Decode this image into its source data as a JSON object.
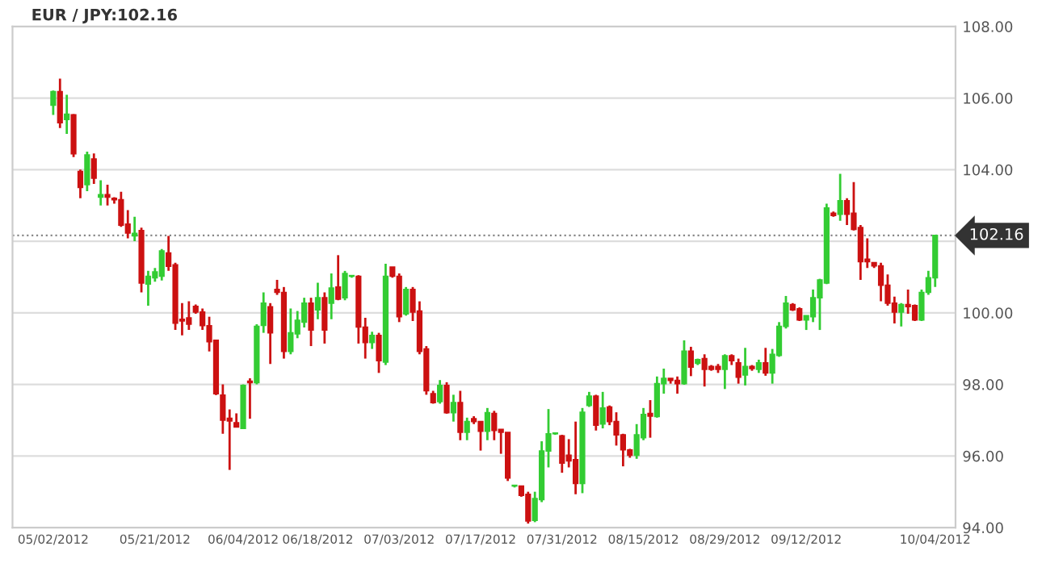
{
  "chart_data": {
    "type": "candlestick",
    "title": "EUR / JPY:102.16",
    "categories": [
      "05/02/2012",
      null,
      null,
      null,
      null,
      null,
      null,
      null,
      null,
      null,
      null,
      null,
      null,
      null,
      null,
      "05/21/2012",
      null,
      null,
      null,
      null,
      null,
      null,
      null,
      null,
      null,
      null,
      null,
      null,
      "06/04/2012",
      null,
      null,
      null,
      null,
      null,
      null,
      null,
      null,
      null,
      null,
      "06/18/2012",
      null,
      null,
      null,
      null,
      null,
      null,
      null,
      null,
      null,
      null,
      null,
      "07/03/2012",
      null,
      null,
      null,
      null,
      null,
      null,
      null,
      null,
      null,
      null,
      null,
      "07/17/2012",
      null,
      null,
      null,
      null,
      null,
      null,
      null,
      null,
      null,
      null,
      null,
      "07/31/2012",
      null,
      null,
      null,
      null,
      null,
      null,
      null,
      null,
      null,
      null,
      null,
      "08/15/2012",
      null,
      null,
      null,
      null,
      null,
      null,
      null,
      null,
      null,
      null,
      null,
      "08/29/2012",
      null,
      null,
      null,
      null,
      null,
      null,
      null,
      null,
      null,
      null,
      null,
      "09/12/2012",
      null,
      null,
      null,
      null,
      null,
      null,
      null,
      null,
      null,
      null,
      null,
      null,
      null,
      null,
      null,
      null,
      null,
      null,
      "10/04/2012"
    ],
    "ohlc": [
      [
        105.8,
        106.21,
        105.53,
        106.18
      ],
      [
        106.18,
        106.54,
        105.16,
        105.31
      ],
      [
        105.4,
        106.09,
        105.0,
        105.55
      ],
      [
        105.53,
        105.55,
        104.35,
        104.44
      ],
      [
        103.95,
        104.0,
        103.2,
        103.5
      ],
      [
        103.58,
        104.5,
        103.4,
        104.41
      ],
      [
        104.3,
        104.45,
        103.6,
        103.76
      ],
      [
        103.23,
        103.7,
        103.0,
        103.3
      ],
      [
        103.3,
        103.58,
        103.0,
        103.23
      ],
      [
        103.2,
        103.23,
        103.05,
        103.16
      ],
      [
        103.16,
        103.38,
        102.4,
        102.45
      ],
      [
        102.48,
        102.87,
        102.08,
        102.23
      ],
      [
        102.15,
        102.68,
        102.0,
        102.22
      ],
      [
        102.3,
        102.38,
        100.57,
        100.83
      ],
      [
        100.8,
        101.17,
        100.2,
        101.02
      ],
      [
        100.98,
        101.25,
        100.87,
        101.14
      ],
      [
        101.02,
        101.78,
        100.9,
        101.73
      ],
      [
        101.67,
        102.15,
        101.17,
        101.3
      ],
      [
        101.34,
        101.4,
        99.52,
        99.71
      ],
      [
        99.82,
        100.27,
        99.37,
        99.77
      ],
      [
        99.86,
        100.32,
        99.52,
        99.68
      ],
      [
        100.18,
        100.23,
        99.97,
        100.02
      ],
      [
        100.02,
        100.12,
        99.52,
        99.64
      ],
      [
        99.64,
        99.89,
        98.92,
        99.19
      ],
      [
        99.23,
        99.25,
        97.7,
        97.74
      ],
      [
        97.7,
        98.0,
        96.62,
        97.0
      ],
      [
        97.05,
        97.3,
        95.61,
        96.98
      ],
      [
        96.93,
        97.19,
        96.81,
        96.81
      ],
      [
        96.77,
        98.0,
        96.77,
        97.97
      ],
      [
        98.09,
        98.17,
        97.04,
        98.05
      ],
      [
        98.05,
        99.68,
        98.0,
        99.62
      ],
      [
        99.65,
        100.57,
        99.44,
        100.27
      ],
      [
        100.17,
        100.27,
        98.57,
        99.44
      ],
      [
        100.65,
        100.92,
        100.5,
        100.57
      ],
      [
        100.57,
        100.72,
        98.72,
        98.92
      ],
      [
        98.92,
        100.12,
        98.84,
        99.44
      ],
      [
        99.41,
        100.05,
        99.29,
        99.79
      ],
      [
        99.74,
        100.42,
        99.59,
        100.27
      ],
      [
        100.27,
        100.42,
        99.07,
        99.52
      ],
      [
        100.08,
        100.84,
        99.82,
        100.42
      ],
      [
        100.42,
        100.57,
        99.14,
        99.52
      ],
      [
        100.27,
        101.1,
        99.82,
        100.69
      ],
      [
        100.72,
        101.61,
        100.35,
        100.38
      ],
      [
        100.42,
        101.17,
        100.35,
        101.1
      ],
      [
        101.02,
        101.05,
        100.98,
        101.02
      ],
      [
        101.02,
        101.05,
        99.14,
        99.6
      ],
      [
        99.6,
        99.86,
        98.72,
        99.17
      ],
      [
        99.17,
        99.47,
        98.99,
        99.37
      ],
      [
        99.37,
        99.44,
        98.32,
        98.66
      ],
      [
        98.62,
        101.37,
        98.54,
        101.02
      ],
      [
        101.28,
        101.28,
        100.98,
        101.02
      ],
      [
        101.02,
        101.1,
        99.74,
        99.89
      ],
      [
        99.97,
        100.72,
        99.92,
        100.65
      ],
      [
        100.65,
        100.72,
        99.77,
        100.02
      ],
      [
        100.05,
        100.32,
        98.84,
        98.92
      ],
      [
        98.99,
        99.07,
        97.71,
        97.82
      ],
      [
        97.74,
        97.82,
        97.46,
        97.49
      ],
      [
        97.52,
        98.12,
        97.46,
        97.97
      ],
      [
        97.97,
        98.06,
        97.18,
        97.21
      ],
      [
        97.21,
        97.71,
        96.96,
        97.49
      ],
      [
        97.49,
        97.82,
        96.44,
        96.66
      ],
      [
        96.66,
        97.07,
        96.44,
        96.96
      ],
      [
        97.04,
        97.11,
        96.89,
        96.96
      ],
      [
        96.96,
        96.96,
        96.15,
        96.69
      ],
      [
        96.69,
        97.34,
        96.44,
        97.21
      ],
      [
        97.19,
        97.26,
        96.44,
        96.71
      ],
      [
        96.74,
        96.74,
        96.06,
        96.66
      ],
      [
        96.66,
        96.66,
        95.3,
        95.38
      ],
      [
        95.16,
        95.19,
        95.12,
        95.16
      ],
      [
        95.16,
        95.16,
        94.86,
        94.9
      ],
      [
        94.93,
        95.0,
        94.11,
        94.18
      ],
      [
        94.2,
        95.0,
        94.15,
        94.81
      ],
      [
        94.78,
        96.41,
        94.71,
        96.14
      ],
      [
        96.14,
        97.31,
        95.68,
        96.62
      ],
      [
        96.62,
        96.66,
        96.59,
        96.62
      ],
      [
        96.56,
        96.59,
        95.53,
        95.8
      ],
      [
        96.02,
        96.47,
        95.68,
        95.86
      ],
      [
        95.9,
        96.96,
        94.93,
        95.23
      ],
      [
        95.23,
        97.34,
        94.96,
        97.22
      ],
      [
        97.41,
        97.79,
        97.37,
        97.67
      ],
      [
        97.67,
        97.71,
        96.71,
        96.86
      ],
      [
        96.89,
        97.79,
        96.77,
        97.34
      ],
      [
        97.37,
        97.41,
        96.86,
        96.96
      ],
      [
        96.96,
        97.22,
        96.29,
        96.59
      ],
      [
        96.59,
        96.62,
        95.71,
        96.17
      ],
      [
        96.17,
        96.2,
        95.95,
        96.02
      ],
      [
        96.02,
        96.89,
        95.92,
        96.59
      ],
      [
        96.51,
        97.34,
        96.44,
        97.16
      ],
      [
        97.19,
        97.56,
        96.51,
        97.11
      ],
      [
        97.1,
        98.22,
        97.07,
        98.02
      ],
      [
        98.02,
        98.44,
        97.74,
        98.17
      ],
      [
        98.17,
        98.17,
        98.02,
        98.11
      ],
      [
        98.11,
        98.22,
        97.74,
        98.02
      ],
      [
        98.02,
        99.23,
        97.99,
        98.93
      ],
      [
        98.93,
        99.05,
        98.23,
        98.48
      ],
      [
        98.59,
        98.72,
        98.54,
        98.69
      ],
      [
        98.72,
        98.84,
        97.94,
        98.42
      ],
      [
        98.5,
        98.54,
        98.38,
        98.42
      ],
      [
        98.5,
        98.57,
        98.32,
        98.42
      ],
      [
        98.42,
        98.84,
        97.87,
        98.8
      ],
      [
        98.8,
        98.84,
        98.54,
        98.66
      ],
      [
        98.6,
        98.72,
        98.02,
        98.2
      ],
      [
        98.26,
        99.02,
        97.97,
        98.5
      ],
      [
        98.5,
        98.54,
        98.38,
        98.44
      ],
      [
        98.42,
        98.69,
        98.32,
        98.6
      ],
      [
        98.6,
        99.02,
        98.24,
        98.32
      ],
      [
        98.32,
        98.99,
        98.02,
        98.84
      ],
      [
        98.81,
        99.74,
        98.77,
        99.62
      ],
      [
        99.62,
        100.47,
        99.56,
        100.27
      ],
      [
        100.23,
        100.27,
        100.05,
        100.08
      ],
      [
        100.11,
        100.15,
        99.77,
        99.8
      ],
      [
        99.8,
        99.92,
        99.52,
        99.92
      ],
      [
        99.89,
        100.65,
        99.74,
        100.42
      ],
      [
        100.42,
        100.95,
        99.52,
        100.92
      ],
      [
        100.83,
        103.05,
        100.8,
        102.93
      ],
      [
        102.78,
        102.83,
        102.68,
        102.72
      ],
      [
        102.75,
        103.88,
        102.57,
        103.13
      ],
      [
        103.13,
        103.2,
        102.45,
        102.75
      ],
      [
        102.78,
        103.65,
        102.3,
        102.33
      ],
      [
        102.38,
        102.45,
        100.92,
        101.43
      ],
      [
        101.5,
        102.08,
        101.25,
        101.43
      ],
      [
        101.4,
        101.4,
        101.25,
        101.31
      ],
      [
        101.31,
        101.4,
        100.32,
        100.77
      ],
      [
        100.77,
        101.07,
        100.2,
        100.27
      ],
      [
        100.27,
        100.45,
        99.7,
        100.02
      ],
      [
        100.02,
        100.27,
        99.62,
        100.23
      ],
      [
        100.23,
        100.65,
        99.97,
        100.17
      ],
      [
        100.2,
        100.23,
        99.77,
        99.8
      ],
      [
        99.8,
        100.65,
        99.77,
        100.57
      ],
      [
        100.57,
        101.17,
        100.5,
        100.98
      ],
      [
        100.98,
        102.16,
        100.72,
        102.16
      ]
    ],
    "colors": [
      "#33cc33",
      "#cc1111",
      "#33cc33",
      "#cc1111",
      "#cc1111",
      "#33cc33",
      "#cc1111",
      "#33cc33",
      "#cc1111",
      "#cc1111",
      "#cc1111",
      "#cc1111",
      "#33cc33",
      "#cc1111",
      "#33cc33",
      "#33cc33",
      "#33cc33",
      "#cc1111",
      "#cc1111",
      "#cc1111",
      "#cc1111",
      "#cc1111",
      "#cc1111",
      "#cc1111",
      "#cc1111",
      "#cc1111",
      "#cc1111",
      "#cc1111",
      "#33cc33",
      "#cc1111",
      "#33cc33",
      "#33cc33",
      "#cc1111",
      "#cc1111",
      "#cc1111",
      "#33cc33",
      "#33cc33",
      "#33cc33",
      "#cc1111",
      "#33cc33",
      "#cc1111",
      "#33cc33",
      "#cc1111",
      "#33cc33",
      "#33cc33",
      "#cc1111",
      "#cc1111",
      "#33cc33",
      "#cc1111",
      "#33cc33",
      "#cc1111",
      "#cc1111",
      "#33cc33",
      "#cc1111",
      "#cc1111",
      "#cc1111",
      "#cc1111",
      "#33cc33",
      "#cc1111",
      "#33cc33",
      "#cc1111",
      "#33cc33",
      "#cc1111",
      "#cc1111",
      "#33cc33",
      "#cc1111",
      "#cc1111",
      "#cc1111",
      "#33cc33",
      "#cc1111",
      "#cc1111",
      "#33cc33",
      "#33cc33",
      "#33cc33",
      "#33cc33",
      "#cc1111",
      "#cc1111",
      "#cc1111",
      "#33cc33",
      "#33cc33",
      "#cc1111",
      "#33cc33",
      "#cc1111",
      "#cc1111",
      "#cc1111",
      "#cc1111",
      "#33cc33",
      "#33cc33",
      "#cc1111",
      "#33cc33",
      "#33cc33",
      "#cc1111",
      "#cc1111",
      "#33cc33",
      "#cc1111",
      "#33cc33",
      "#cc1111",
      "#cc1111",
      "#cc1111",
      "#33cc33",
      "#cc1111",
      "#cc1111",
      "#33cc33",
      "#cc1111",
      "#33cc33",
      "#cc1111",
      "#33cc33",
      "#33cc33",
      "#33cc33",
      "#cc1111",
      "#cc1111",
      "#33cc33",
      "#33cc33",
      "#33cc33",
      "#33cc33",
      "#cc1111",
      "#33cc33",
      "#cc1111",
      "#cc1111",
      "#cc1111",
      "#cc1111",
      "#cc1111",
      "#cc1111",
      "#cc1111",
      "#cc1111",
      "#33cc33",
      "#cc1111",
      "#cc1111",
      "#33cc33",
      "#33cc33",
      "#33cc33"
    ],
    "ylim": [
      94,
      108
    ],
    "yticks": [
      {
        "value": 94,
        "label": "94.00"
      },
      {
        "value": 96,
        "label": "96.00"
      },
      {
        "value": 98,
        "label": "98.00"
      },
      {
        "value": 100,
        "label": "100.00"
      },
      {
        "value": 102,
        "label": null
      },
      {
        "value": 104,
        "label": "104.00"
      },
      {
        "value": 106,
        "label": "106.00"
      },
      {
        "value": 108,
        "label": "108.00"
      }
    ],
    "grid": "y",
    "ref_lines": [
      {
        "axis": "y",
        "value": 102.16,
        "label": "102.16",
        "color": "#888888",
        "line_style": "dotted"
      }
    ]
  }
}
